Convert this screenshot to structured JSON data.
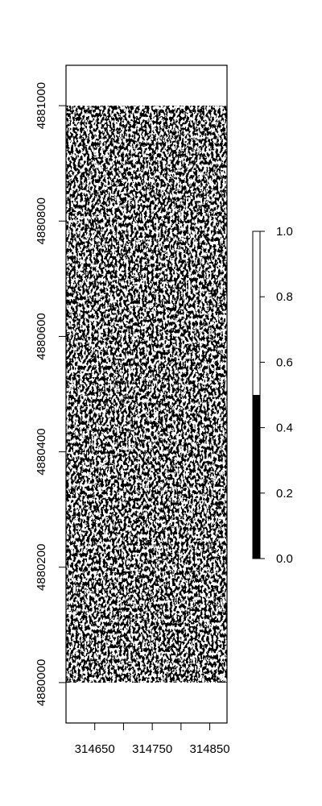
{
  "chart_data": {
    "type": "heatmap",
    "title": "",
    "xlabel": "",
    "ylabel": "",
    "description": "Binary (0/1) raster shaded black for 0 and white for 1, with dense noisy hillshade-like texture.",
    "xlim": [
      314600,
      314880
    ],
    "ylim": [
      4879930,
      4881070
    ],
    "raster_extent": {
      "x": [
        314600,
        314880
      ],
      "y": [
        4880000,
        4881000
      ]
    },
    "x_ticks": [
      314650,
      314750,
      314850
    ],
    "x_minor_ticks": [
      314700,
      314800
    ],
    "y_ticks": [
      4880000,
      4880200,
      4880400,
      4880600,
      4880800,
      4881000
    ],
    "value_range": [
      0,
      1
    ],
    "legend": {
      "placement": "right",
      "breaks": [
        0.0,
        0.5,
        1.0
      ],
      "classes": [
        {
          "min": 0.0,
          "max": 0.5,
          "color": "#000000"
        },
        {
          "min": 0.5,
          "max": 1.0,
          "color": "#ffffff"
        }
      ],
      "ticks": [
        {
          "value": 0.0,
          "label": "0.0"
        },
        {
          "value": 0.2,
          "label": "0.2"
        },
        {
          "value": 0.4,
          "label": "0.4"
        },
        {
          "value": 0.6,
          "label": "0.6"
        },
        {
          "value": 0.8,
          "label": "0.8"
        },
        {
          "value": 1.0,
          "label": "1.0"
        }
      ]
    },
    "colors": {
      "low": "#000000",
      "high": "#ffffff"
    }
  }
}
